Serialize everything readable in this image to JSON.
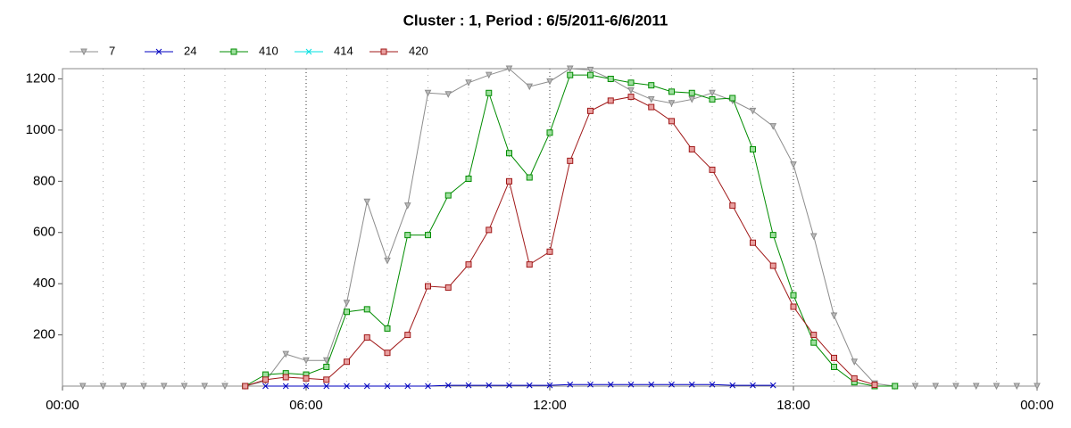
{
  "chart_data": {
    "type": "line",
    "title": "Cluster : 1, Period : 6/5/2011-6/6/2011",
    "x": [
      0.5,
      1,
      1.5,
      2,
      2.5,
      3,
      3.5,
      4,
      4.5,
      5,
      5.5,
      6,
      6.5,
      7,
      7.5,
      8,
      8.5,
      9,
      9.5,
      10,
      10.5,
      11,
      11.5,
      12,
      12.5,
      13,
      13.5,
      14,
      14.5,
      15,
      15.5,
      16,
      16.5,
      17,
      17.5,
      18,
      18.5,
      19,
      19.5,
      20,
      20.5,
      21,
      21.5,
      22,
      22.5,
      23,
      23.5,
      24
    ],
    "series": [
      {
        "name": "7",
        "color": "#8c8c8c",
        "marker": "triangle",
        "values": [
          0,
          0,
          0,
          0,
          0,
          0,
          0,
          0,
          0,
          20,
          125,
          100,
          100,
          325,
          720,
          490,
          705,
          1145,
          1140,
          1185,
          1215,
          1240,
          1170,
          1190,
          1240,
          1235,
          1200,
          1155,
          1120,
          1105,
          1120,
          1145,
          1115,
          1075,
          1015,
          865,
          585,
          275,
          95,
          10,
          0,
          0,
          0,
          0,
          0,
          0,
          0,
          0
        ]
      },
      {
        "name": "24",
        "color": "#0000c0",
        "marker": "x",
        "values": [
          null,
          null,
          null,
          null,
          null,
          null,
          null,
          null,
          null,
          0,
          0,
          0,
          0,
          0,
          0,
          0,
          0,
          0,
          3,
          3,
          3,
          3,
          3,
          3,
          6,
          6,
          6,
          6,
          6,
          6,
          6,
          6,
          3,
          3,
          3,
          null,
          null,
          null,
          null,
          null,
          null,
          null,
          null,
          null,
          null,
          null,
          null,
          null
        ]
      },
      {
        "name": "410",
        "color": "#008c00",
        "marker": "square",
        "values": [
          null,
          null,
          null,
          null,
          null,
          null,
          null,
          null,
          0,
          45,
          50,
          45,
          75,
          290,
          300,
          225,
          590,
          590,
          745,
          810,
          1145,
          910,
          815,
          990,
          1215,
          1215,
          1200,
          1185,
          1175,
          1150,
          1145,
          1120,
          1125,
          925,
          590,
          355,
          170,
          75,
          15,
          0,
          0,
          null,
          null,
          null,
          null,
          null,
          null,
          null
        ]
      },
      {
        "name": "414",
        "color": "#00e0e0",
        "marker": "x",
        "values": [
          null,
          null,
          null,
          null,
          null,
          null,
          null,
          null,
          null,
          null,
          null,
          null,
          null,
          null,
          null,
          null,
          null,
          null,
          null,
          null,
          null,
          null,
          null,
          null,
          null,
          null,
          null,
          null,
          null,
          null,
          null,
          null,
          null,
          null,
          null,
          null,
          null,
          null,
          null,
          null,
          null,
          null,
          null,
          null,
          null,
          null,
          null,
          null
        ]
      },
      {
        "name": "420",
        "color": "#a01818",
        "marker": "square",
        "values": [
          null,
          null,
          null,
          null,
          null,
          null,
          null,
          null,
          0,
          25,
          35,
          30,
          25,
          95,
          190,
          130,
          200,
          390,
          385,
          475,
          610,
          800,
          475,
          525,
          880,
          1075,
          1115,
          1130,
          1090,
          1035,
          925,
          845,
          705,
          560,
          470,
          310,
          200,
          110,
          30,
          5,
          null,
          null,
          null,
          null,
          null,
          null,
          null,
          null
        ]
      }
    ],
    "xlim": [
      0,
      24
    ],
    "xticks": [
      {
        "value": 0,
        "label": "00:00"
      },
      {
        "value": 6,
        "label": "06:00"
      },
      {
        "value": 12,
        "label": "12:00"
      },
      {
        "value": 18,
        "label": "18:00"
      },
      {
        "value": 24,
        "label": "00:00"
      }
    ],
    "xminorticks": [
      1,
      2,
      3,
      4,
      5,
      7,
      8,
      9,
      10,
      11,
      13,
      14,
      15,
      16,
      17,
      19,
      20,
      21,
      22,
      23
    ],
    "ylim": [
      0,
      1240
    ],
    "yticks": [
      200,
      400,
      600,
      800,
      1000,
      1200
    ],
    "grid": true
  }
}
